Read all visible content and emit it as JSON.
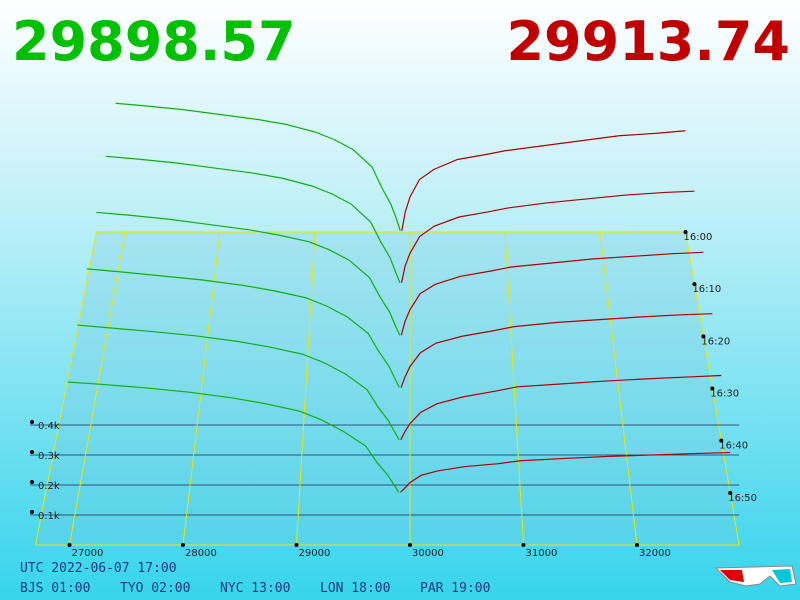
{
  "header": {
    "bid": "29898.57",
    "ask": "29913.74"
  },
  "chart_data": {
    "type": "depth3d",
    "xlim": [
      26700,
      32900
    ],
    "xticks": [
      27000,
      28000,
      29000,
      30000,
      31000,
      32000
    ],
    "zlim": [
      0,
      550
    ],
    "zticks": [
      {
        "value": 100,
        "label": "0.1k"
      },
      {
        "value": 200,
        "label": "0.2k"
      },
      {
        "value": 300,
        "label": "0.3k"
      },
      {
        "value": 400,
        "label": "0.4k"
      }
    ],
    "bid_color": "#10b010",
    "ask_color": "#b00000",
    "slices": [
      {
        "time": "16:00",
        "bids": {
          "x": [
            29898,
            29850,
            29800,
            29700,
            29600,
            29400,
            29200,
            29000,
            28700,
            28400,
            28000,
            27600,
            27200,
            26900
          ],
          "values": [
            5,
            60,
            110,
            180,
            260,
            330,
            370,
            400,
            430,
            450,
            470,
            490,
            505,
            515
          ]
        },
        "asks": {
          "x": [
            29914,
            29950,
            30000,
            30100,
            30250,
            30500,
            30800,
            31000,
            31400,
            31800,
            32200,
            32600,
            32900
          ],
          "values": [
            5,
            80,
            140,
            210,
            250,
            290,
            310,
            325,
            345,
            365,
            385,
            395,
            405
          ]
        }
      },
      {
        "time": "16:10",
        "bids": {
          "x": [
            29898,
            29850,
            29800,
            29700,
            29600,
            29400,
            29200,
            29000,
            28700,
            28400,
            28000,
            27600,
            27200,
            26900
          ],
          "values": [
            5,
            50,
            100,
            165,
            240,
            310,
            350,
            380,
            410,
            430,
            450,
            470,
            485,
            495
          ]
        },
        "asks": {
          "x": [
            29914,
            29950,
            30000,
            30100,
            30250,
            30500,
            30800,
            31000,
            31400,
            31800,
            32200,
            32600,
            32900
          ],
          "values": [
            5,
            70,
            120,
            185,
            225,
            260,
            280,
            295,
            315,
            330,
            345,
            355,
            360
          ]
        }
      },
      {
        "time": "16:20",
        "bids": {
          "x": [
            29898,
            29850,
            29800,
            29700,
            29600,
            29400,
            29200,
            29000,
            28700,
            28400,
            28000,
            27600,
            27200,
            26900
          ],
          "values": [
            4,
            45,
            90,
            150,
            220,
            285,
            325,
            355,
            380,
            400,
            420,
            440,
            455,
            465
          ]
        },
        "asks": {
          "x": [
            29914,
            29950,
            30000,
            30100,
            30250,
            30500,
            30800,
            31000,
            31400,
            31800,
            32200,
            32600,
            32900
          ],
          "values": [
            4,
            55,
            100,
            160,
            195,
            225,
            245,
            260,
            275,
            290,
            300,
            310,
            315
          ]
        }
      },
      {
        "time": "16:30",
        "bids": {
          "x": [
            29898,
            29850,
            29800,
            29700,
            29600,
            29400,
            29200,
            29000,
            28700,
            28400,
            28000,
            27600,
            27200,
            26900
          ],
          "values": [
            4,
            40,
            80,
            135,
            200,
            260,
            300,
            330,
            355,
            375,
            395,
            410,
            425,
            435
          ]
        },
        "asks": {
          "x": [
            29914,
            29950,
            30000,
            30100,
            30250,
            30500,
            30800,
            31000,
            31400,
            31800,
            32200,
            32600,
            32900
          ],
          "values": [
            3,
            40,
            80,
            130,
            165,
            190,
            210,
            225,
            240,
            250,
            260,
            268,
            272
          ]
        }
      },
      {
        "time": "16:40",
        "bids": {
          "x": [
            29898,
            29850,
            29800,
            29700,
            29600,
            29400,
            29200,
            29000,
            28700,
            28400,
            28000,
            27600,
            27200,
            26900
          ],
          "values": [
            3,
            35,
            70,
            120,
            180,
            235,
            275,
            305,
            330,
            350,
            370,
            385,
            398,
            408
          ]
        },
        "asks": {
          "x": [
            29914,
            29950,
            30000,
            30100,
            30250,
            30500,
            30800,
            31000,
            31400,
            31800,
            32200,
            32600,
            32900
          ],
          "values": [
            3,
            30,
            60,
            100,
            130,
            155,
            175,
            190,
            200,
            210,
            218,
            225,
            230
          ]
        }
      },
      {
        "time": "16:50",
        "bids": {
          "x": [
            29898,
            29850,
            29800,
            29700,
            29600,
            29400,
            29200,
            29000,
            28700,
            28400,
            28000,
            27600,
            27200,
            26900
          ],
          "values": [
            2,
            30,
            60,
            105,
            160,
            210,
            250,
            280,
            305,
            325,
            345,
            360,
            372,
            380
          ]
        },
        "asks": {
          "x": [
            29914,
            29950,
            30000,
            30100,
            30250,
            30500,
            30800,
            31000,
            31400,
            31800,
            32200,
            32600,
            32900
          ],
          "values": [
            2,
            15,
            35,
            60,
            75,
            90,
            100,
            110,
            118,
            125,
            130,
            135,
            138
          ]
        }
      }
    ]
  },
  "footer": {
    "utc": "UTC 2022-06-07 17:00",
    "cities": [
      "BJS 01:00",
      "TYO 02:00",
      "NYC 13:00",
      "LON 18:00",
      "PAR 19:00"
    ]
  }
}
